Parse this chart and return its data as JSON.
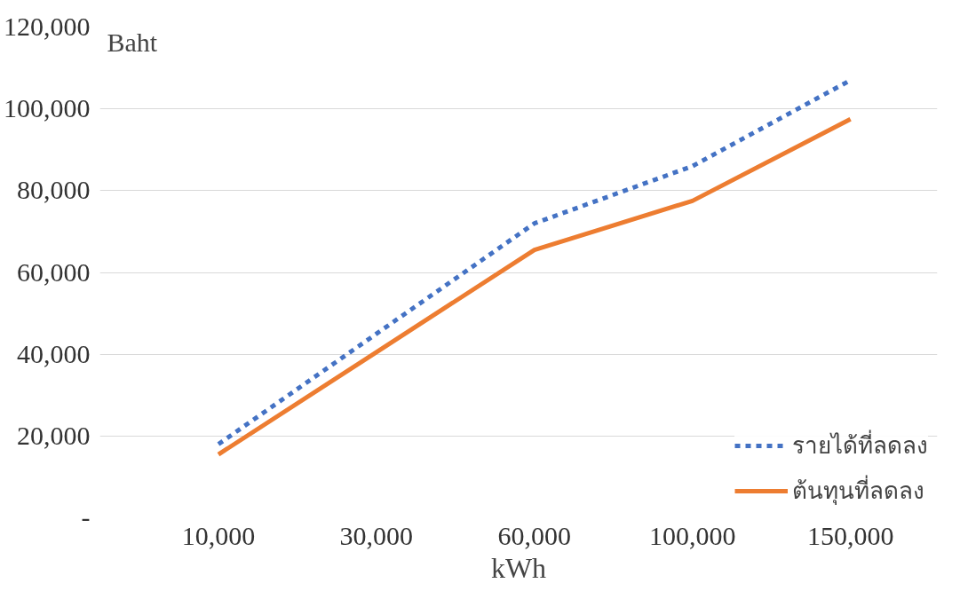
{
  "chart_data": {
    "type": "line",
    "ylabel": "Baht",
    "xlabel": "kWh",
    "categories": [
      "10,000",
      "30,000",
      "60,000",
      "100,000",
      "150,000"
    ],
    "series": [
      {
        "name": "รายได้ที่ลดลง",
        "color": "#4472c4",
        "line_style": "dashed",
        "values": [
          18000,
          45000,
          72000,
          86000,
          107000
        ]
      },
      {
        "name": "ต้นทุนที่ลดลง",
        "color": "#ed7d31",
        "line_style": "solid",
        "values": [
          15500,
          40500,
          65500,
          77500,
          97500
        ]
      }
    ],
    "ylim": [
      0,
      120000
    ],
    "yticks": [
      {
        "value": 0,
        "label": "-"
      },
      {
        "value": 20000,
        "label": "20,000"
      },
      {
        "value": 40000,
        "label": "40,000"
      },
      {
        "value": 60000,
        "label": "60,000"
      },
      {
        "value": 80000,
        "label": "80,000"
      },
      {
        "value": 100000,
        "label": "100,000"
      },
      {
        "value": 120000,
        "label": "120,000"
      }
    ],
    "grid": "y",
    "legend": "bottom right"
  }
}
